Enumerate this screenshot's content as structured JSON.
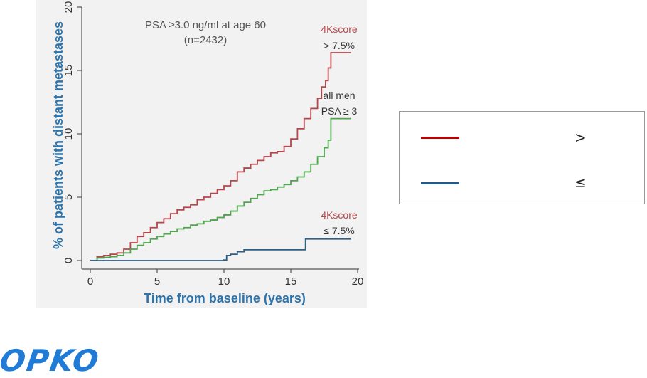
{
  "chart_data": {
    "type": "line",
    "title": "PSA ≥3.0 ng/ml at age 60",
    "subtitle": "(n=2432)",
    "xlabel": "Time from baseline (years)",
    "ylabel": "% of patients with distant metastases",
    "xlim": [
      0,
      20
    ],
    "ylim": [
      0,
      20
    ],
    "xticks": [
      0,
      5,
      10,
      15,
      20
    ],
    "yticks": [
      0,
      5,
      10,
      15,
      20
    ],
    "grid": false,
    "series": [
      {
        "name": "4Kscore > 7.5%",
        "color": "#b5474b",
        "x": [
          0.0,
          0.5,
          1.0,
          1.5,
          2.0,
          2.5,
          3.0,
          3.5,
          4.0,
          4.5,
          5.0,
          5.5,
          6.0,
          6.5,
          7.0,
          7.5,
          8.0,
          8.5,
          9.0,
          9.5,
          10.0,
          10.5,
          11.0,
          11.5,
          12.0,
          12.5,
          13.0,
          13.5,
          14.0,
          14.5,
          15.0,
          15.5,
          16.0,
          16.5,
          17.0,
          17.3,
          17.6,
          17.8,
          18.0,
          19.5
        ],
        "y": [
          0.0,
          0.3,
          0.4,
          0.5,
          0.6,
          0.9,
          1.4,
          1.9,
          2.2,
          2.6,
          3.0,
          3.3,
          3.7,
          4.0,
          4.2,
          4.4,
          4.8,
          5.0,
          5.3,
          5.6,
          5.9,
          6.3,
          7.0,
          7.3,
          7.6,
          7.9,
          8.2,
          8.5,
          8.6,
          9.0,
          9.6,
          10.4,
          11.2,
          12.0,
          12.8,
          13.7,
          14.2,
          15.2,
          16.4,
          16.4
        ]
      },
      {
        "name": "all men PSA ≥ 3",
        "color": "#4fa64f",
        "x": [
          0.0,
          0.5,
          1.0,
          1.5,
          2.0,
          2.5,
          3.0,
          3.5,
          4.0,
          4.5,
          5.0,
          5.5,
          6.0,
          6.5,
          7.0,
          7.5,
          8.0,
          8.5,
          9.0,
          9.5,
          10.0,
          10.5,
          11.0,
          11.5,
          12.0,
          12.5,
          13.0,
          13.5,
          14.0,
          14.5,
          15.0,
          15.5,
          16.0,
          16.5,
          17.0,
          17.5,
          17.8,
          18.0,
          19.5
        ],
        "y": [
          0.0,
          0.2,
          0.25,
          0.3,
          0.4,
          0.6,
          0.9,
          1.2,
          1.4,
          1.7,
          1.9,
          2.1,
          2.3,
          2.5,
          2.6,
          2.8,
          2.9,
          3.1,
          3.2,
          3.4,
          3.6,
          3.9,
          4.3,
          4.6,
          4.9,
          5.2,
          5.5,
          5.6,
          5.8,
          6.0,
          6.3,
          6.6,
          7.0,
          7.6,
          8.2,
          8.9,
          9.5,
          11.2,
          11.2
        ]
      },
      {
        "name": "4Kscore ≤ 7.5%",
        "color": "#2e5f86",
        "x": [
          0.0,
          7.0,
          10.0,
          10.2,
          10.5,
          11.0,
          11.5,
          16.0,
          16.1,
          19.5
        ],
        "y": [
          0.0,
          0.0,
          0.05,
          0.4,
          0.5,
          0.7,
          0.85,
          0.85,
          1.7,
          1.7
        ]
      }
    ],
    "annotations": [
      {
        "id": "high",
        "lines": [
          "4Kscore",
          "> 7.5%"
        ]
      },
      {
        "id": "all",
        "lines": [
          "all men",
          "PSA ≥ 3"
        ]
      },
      {
        "id": "low",
        "lines": [
          "4Kscore",
          "≤ 7.5%"
        ]
      }
    ]
  },
  "legend": {
    "items": [
      {
        "color": "#c00000",
        "symbol": ">"
      },
      {
        "color": "#1f5a8a",
        "symbol": "≤"
      }
    ]
  },
  "logo": {
    "text": "OPKO",
    "color": "#1f7bd6"
  }
}
